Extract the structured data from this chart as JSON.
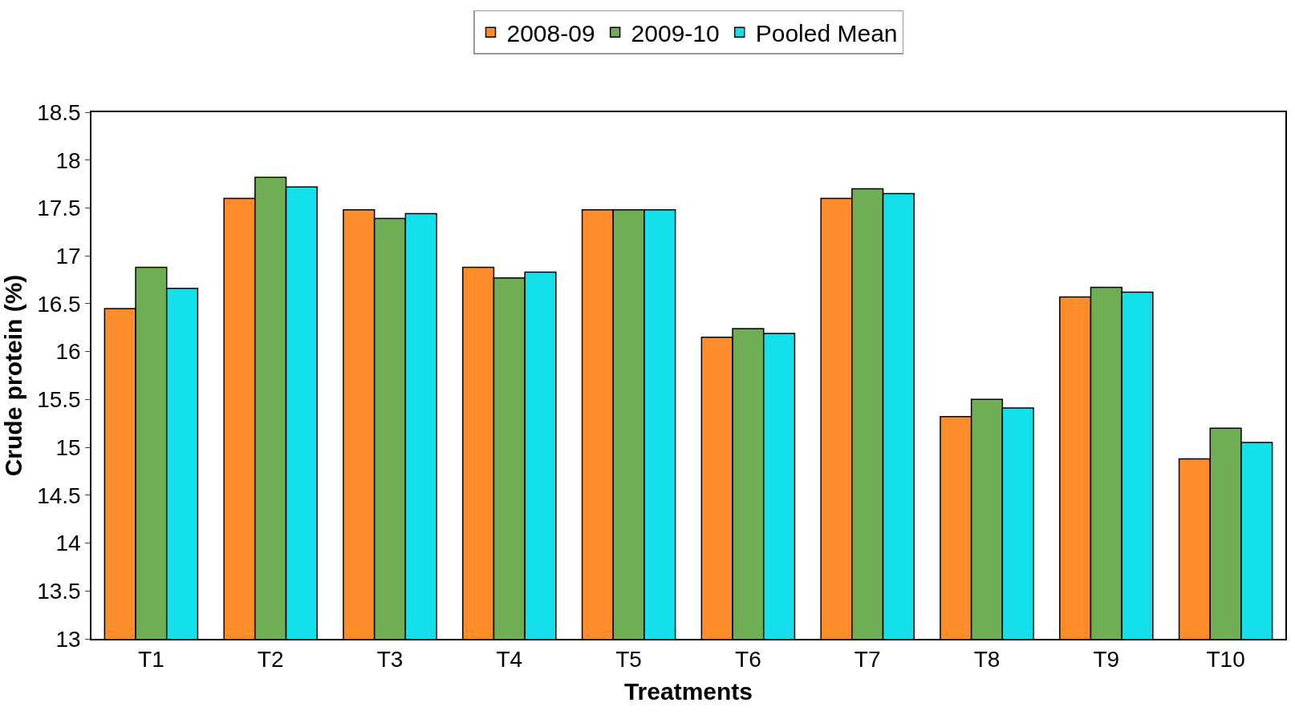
{
  "chart_data": {
    "type": "bar",
    "xlabel": "Treatments",
    "ylabel": "Crude protein (%)",
    "categories": [
      "T1",
      "T2",
      "T3",
      "T4",
      "T5",
      "T6",
      "T7",
      "T8",
      "T9",
      "T10"
    ],
    "series": [
      {
        "name": "2008-09",
        "color": "#ff8c2a",
        "values": [
          16.45,
          17.6,
          17.48,
          16.88,
          17.48,
          16.15,
          17.6,
          15.32,
          16.57,
          14.88
        ]
      },
      {
        "name": "2009-10",
        "color": "#6fae55",
        "values": [
          16.88,
          17.82,
          17.39,
          16.77,
          17.48,
          16.24,
          17.7,
          15.5,
          16.67,
          15.2
        ]
      },
      {
        "name": "Pooled Mean",
        "color": "#14e0ec",
        "values": [
          16.66,
          17.72,
          17.44,
          16.83,
          17.48,
          16.19,
          17.65,
          15.41,
          16.62,
          15.05
        ]
      }
    ],
    "ylim": [
      13,
      18.5
    ],
    "yticks": [
      13,
      13.5,
      14,
      14.5,
      15,
      15.5,
      16,
      16.5,
      17,
      17.5,
      18,
      18.5
    ],
    "legend": "top"
  }
}
